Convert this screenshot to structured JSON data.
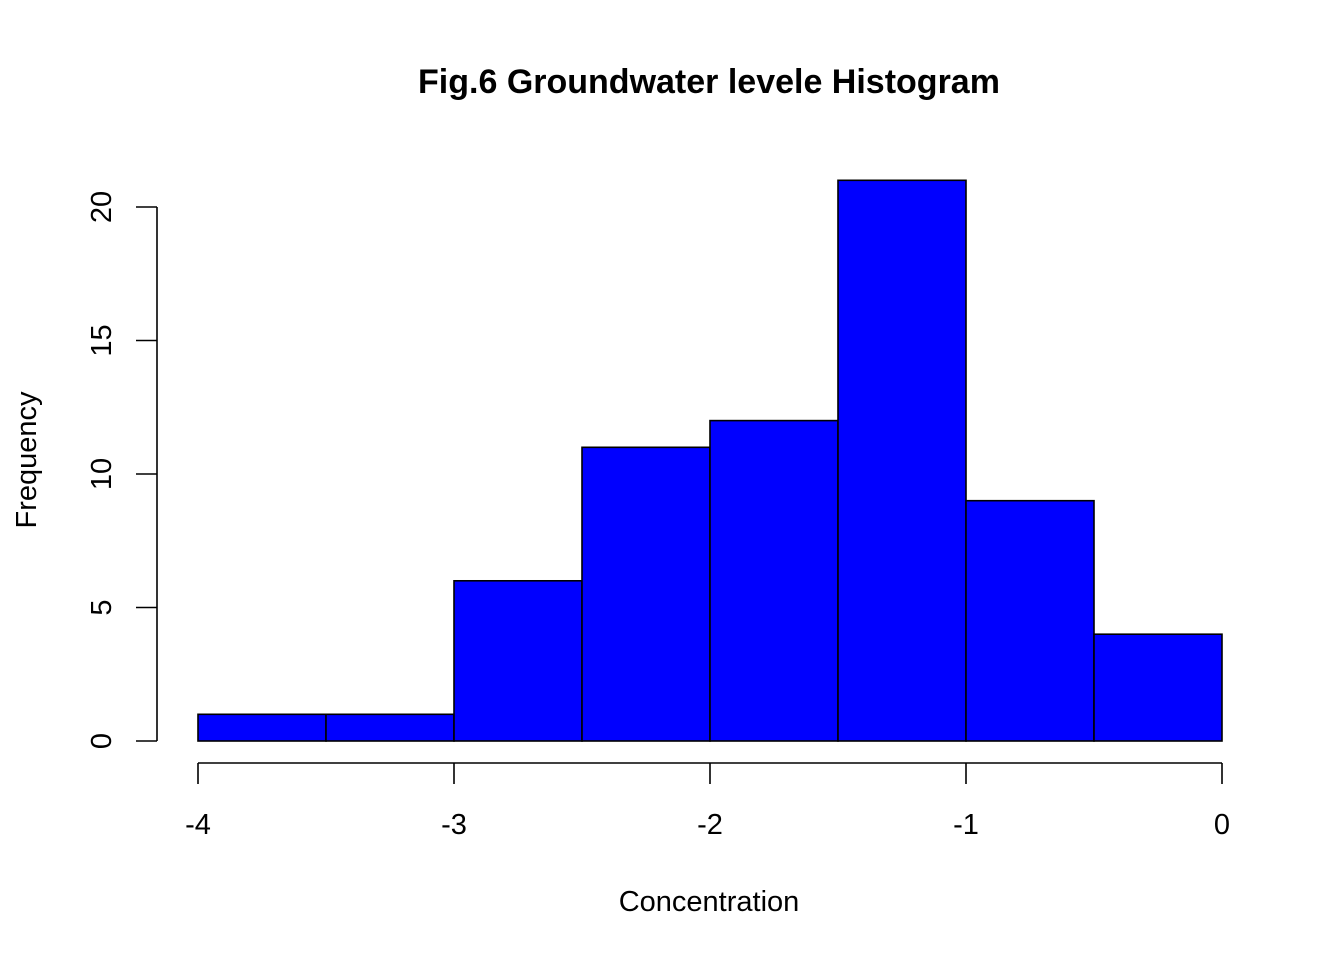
{
  "chart_data": {
    "type": "bar",
    "title": "Fig.6 Groundwater levele Histogram",
    "xlabel": "Concentration",
    "ylabel": "Frequency",
    "bins": [
      {
        "x0": -4.0,
        "x1": -3.5,
        "count": 1
      },
      {
        "x0": -3.5,
        "x1": -3.0,
        "count": 1
      },
      {
        "x0": -3.0,
        "x1": -2.5,
        "count": 6
      },
      {
        "x0": -2.5,
        "x1": -2.0,
        "count": 11
      },
      {
        "x0": -2.0,
        "x1": -1.5,
        "count": 12
      },
      {
        "x0": -1.5,
        "x1": -1.0,
        "count": 21
      },
      {
        "x0": -1.0,
        "x1": -0.5,
        "count": 9
      },
      {
        "x0": -0.5,
        "x1": 0.0,
        "count": 4
      }
    ],
    "xticks": [
      -4,
      -3,
      -2,
      -1,
      0
    ],
    "xtick_labels": [
      "-4",
      "-3",
      "-2",
      "-1",
      "0"
    ],
    "yticks": [
      0,
      5,
      10,
      15,
      20
    ],
    "ytick_labels": [
      "0",
      "5",
      "10",
      "15",
      "20"
    ],
    "xlim": [
      -4,
      0
    ],
    "ylim": [
      0,
      20
    ],
    "bar_color": "#0000ff",
    "grid": false,
    "legend": "none"
  }
}
